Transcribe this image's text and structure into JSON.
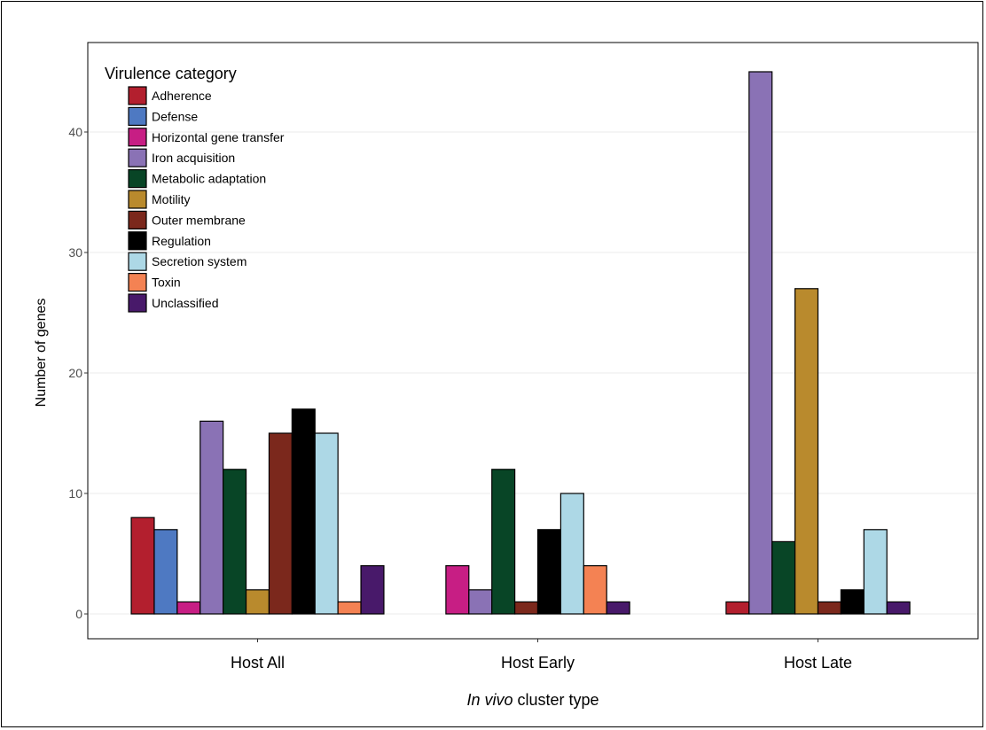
{
  "chart_data": {
    "type": "bar",
    "xlabel_italic": "In vivo",
    "xlabel_rest": " cluster type",
    "ylabel": "Number of genes",
    "ylim": [
      0,
      47
    ],
    "yticks": [
      0,
      10,
      20,
      30,
      40
    ],
    "grid": "horizontal",
    "legend_position": "top-left",
    "legend_title": "Virulence category",
    "categories": [
      "Host All",
      "Host Early",
      "Host Late"
    ],
    "series": [
      {
        "name": "Adherence",
        "color": "#B31F2E",
        "values": [
          8,
          0,
          1
        ]
      },
      {
        "name": "Defense",
        "color": "#4E79C2",
        "values": [
          7,
          0,
          0
        ]
      },
      {
        "name": "Horizontal gene transfer",
        "color": "#C71E84",
        "values": [
          1,
          4,
          0
        ]
      },
      {
        "name": "Iron acquisition",
        "color": "#8A72B5",
        "values": [
          16,
          2,
          45
        ]
      },
      {
        "name": "Metabolic adaptation",
        "color": "#084526",
        "values": [
          12,
          12,
          6
        ]
      },
      {
        "name": "Motility",
        "color": "#B98A2D",
        "values": [
          2,
          0,
          27
        ]
      },
      {
        "name": "Outer membrane",
        "color": "#7B281C",
        "values": [
          15,
          1,
          1
        ]
      },
      {
        "name": "Regulation",
        "color": "#000000",
        "values": [
          17,
          7,
          2
        ]
      },
      {
        "name": "Secretion system",
        "color": "#ADD8E6",
        "values": [
          15,
          10,
          7
        ]
      },
      {
        "name": "Toxin",
        "color": "#F48253",
        "values": [
          1,
          4,
          0
        ]
      },
      {
        "name": "Unclassified",
        "color": "#48196A",
        "values": [
          4,
          1,
          1
        ]
      }
    ]
  }
}
